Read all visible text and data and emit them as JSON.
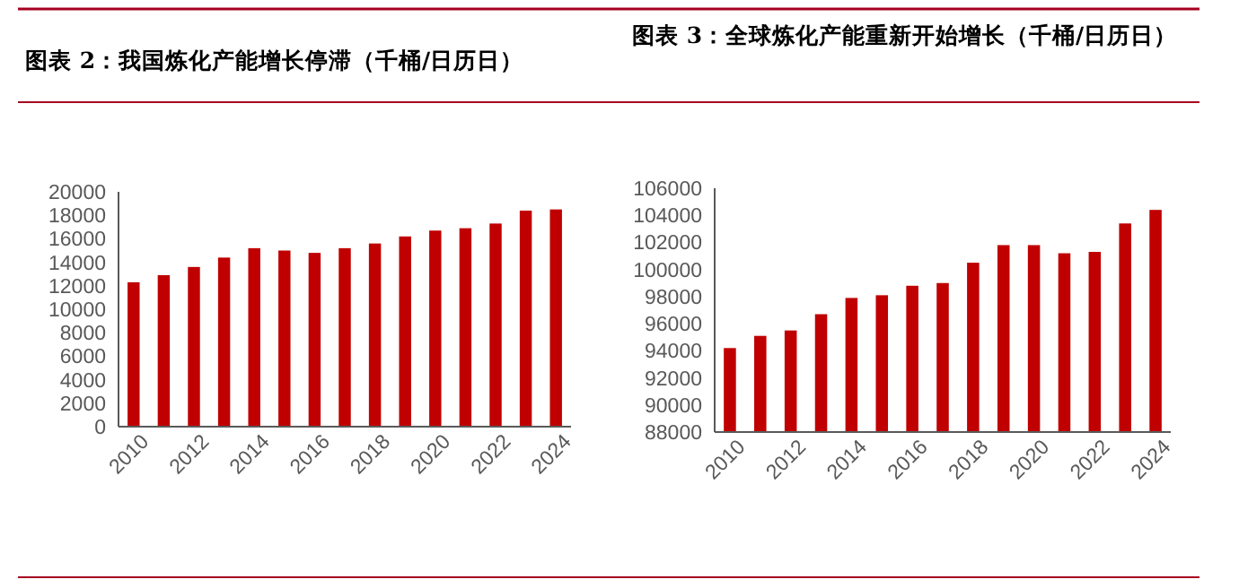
{
  "chart_data": [
    {
      "type": "bar",
      "title": "图表 2：我国炼化产能增长停滞（千桶/日历日）",
      "categories": [
        "2010",
        null,
        "2012",
        null,
        "2014",
        null,
        "2016",
        null,
        "2018",
        null,
        "2020",
        null,
        "2022",
        null,
        "2024"
      ],
      "values": [
        12300,
        12900,
        13600,
        14400,
        15200,
        15000,
        14800,
        15200,
        15600,
        16200,
        16700,
        16900,
        17300,
        18400,
        18500
      ],
      "color": "#c00000",
      "ylim": [
        0,
        20000
      ],
      "yticks": [
        0,
        2000,
        4000,
        6000,
        8000,
        10000,
        12000,
        14000,
        16000,
        18000,
        20000
      ]
    },
    {
      "type": "bar",
      "title": "图表 3：全球炼化产能重新开始增长（千桶/日历日）",
      "categories": [
        "2010",
        null,
        "2012",
        null,
        "2014",
        null,
        "2016",
        null,
        "2018",
        null,
        "2020",
        null,
        "2022",
        null,
        "2024"
      ],
      "values": [
        94200,
        95100,
        95500,
        96700,
        97900,
        98100,
        98800,
        99000,
        100500,
        101800,
        101800,
        101200,
        101300,
        103400,
        104400
      ],
      "color": "#c00000",
      "ylim": [
        88000,
        106000
      ],
      "yticks": [
        88000,
        90000,
        92000,
        94000,
        96000,
        98000,
        100000,
        102000,
        104000,
        106000
      ]
    }
  ]
}
